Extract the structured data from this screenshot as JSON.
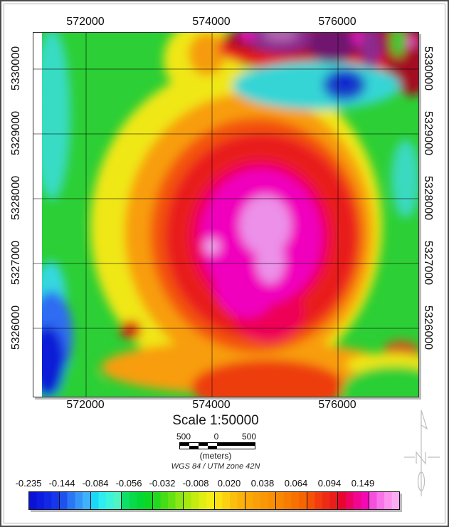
{
  "figure": {
    "map": {
      "x_ticks": [
        "572000",
        "574000",
        "576000"
      ],
      "y_ticks_left": [
        "5330000",
        "5329000",
        "5328000",
        "5327000",
        "5326000"
      ],
      "y_ticks_right": [
        "5330000",
        "5329000",
        "5328000",
        "5327000",
        "5326000"
      ]
    },
    "scale": {
      "title": "Scale 1:50000",
      "bar_numbers": [
        "500",
        "0",
        "500"
      ],
      "units_label": "(meters)",
      "datum_label": "WGS 84 / UTM zone 42N"
    },
    "north_arrow_label": "N",
    "legend": {
      "tick_values": [
        "-0.235",
        "-0.144",
        "-0.084",
        "-0.056",
        "-0.032",
        "-0.008",
        "0.020",
        "0.038",
        "0.064",
        "0.094",
        "0.149"
      ],
      "cells": [
        {
          "stops": [
            "#0a12d8",
            "#0d1ce0",
            "#1128e6",
            "#1636ee"
          ]
        },
        {
          "stops": [
            "#1d52ee",
            "#2a77f4",
            "#3596f8",
            "#3fb2fb"
          ]
        },
        {
          "stops": [
            "#1cd8f8",
            "#2ceef0",
            "#3df4da",
            "#4df5c2"
          ]
        },
        {
          "stops": [
            "#0edf66",
            "#08da4a",
            "#05d734",
            "#0cd824"
          ]
        },
        {
          "stops": [
            "#23d91d",
            "#45dd18",
            "#65e113",
            "#8ae714"
          ]
        },
        {
          "stops": [
            "#a5e90e",
            "#c4ec10",
            "#e0ee12",
            "#f3ef16"
          ]
        },
        {
          "stops": [
            "#f9e112",
            "#fbd010",
            "#fbc00d",
            "#fbb20b"
          ]
        },
        {
          "stops": [
            "#fba809",
            "#fa9f07",
            "#f99805",
            "#f99004"
          ]
        },
        {
          "stops": [
            "#f88803",
            "#f87c02",
            "#f77102",
            "#f66502"
          ]
        },
        {
          "stops": [
            "#f55107",
            "#f23b0e",
            "#ee2b14",
            "#ea1d1a"
          ]
        },
        {
          "stops": [
            "#e7062e",
            "#ec0460",
            "#f00690",
            "#f309b2"
          ]
        },
        {
          "stops": [
            "#f64fe0",
            "#f873e8",
            "#fa92ee",
            "#fbadf4"
          ]
        }
      ]
    },
    "colors": {
      "grid_line": "rgba(0,0,0,0.55)",
      "map_frame": "#2e2e2e",
      "north_arrow": "#bdbdbd",
      "anomaly_core": "#ec90e9",
      "anomaly_high": "#f006bd",
      "background_low": "#0c1fd6"
    }
  }
}
